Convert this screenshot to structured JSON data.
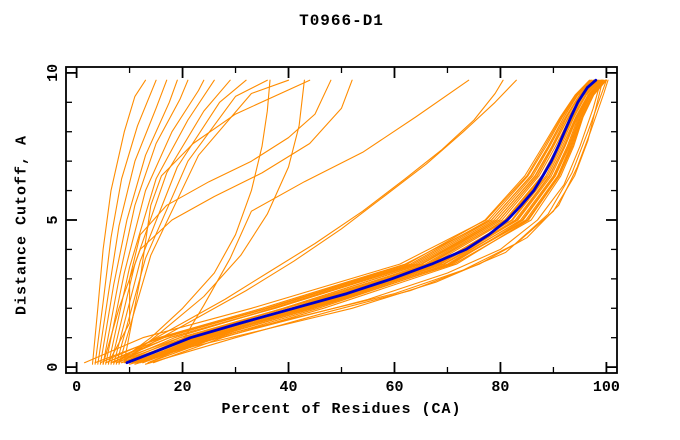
{
  "chart_data": {
    "type": "line",
    "title": "T0966-D1",
    "xlabel": "Percent of Residues (CA)",
    "ylabel": "Distance Cutoff, A",
    "xlim": [
      0,
      100
    ],
    "ylim": [
      0,
      10
    ],
    "draw_xlim": [
      -2,
      102
    ],
    "draw_ylim": [
      -0.2,
      10.2
    ],
    "grid": false,
    "legend": "none",
    "x_ticks_major": [
      0,
      20,
      40,
      60,
      80,
      100
    ],
    "x_tick_labels": [
      "0",
      "20",
      "40",
      "60",
      "80",
      "100"
    ],
    "x_ticks_minor": [
      10,
      30,
      50,
      70,
      90
    ],
    "y_ticks_major": [
      0,
      5,
      10
    ],
    "y_tick_labels": [
      "0",
      "5",
      "10"
    ],
    "y_ticks_minor": [
      1,
      2,
      3,
      4,
      6,
      7,
      8,
      9
    ],
    "colors": {
      "models": "#ff8c00",
      "reference": "#0000cd",
      "axis": "#000000",
      "background": "#ffffff"
    },
    "reference": {
      "name": "highlighted-model-curve",
      "points": [
        [
          9.5,
          0.15
        ],
        [
          14.5,
          0.5
        ],
        [
          21.5,
          1
        ],
        [
          31,
          1.5
        ],
        [
          41,
          2
        ],
        [
          51,
          2.5
        ],
        [
          59.5,
          3
        ],
        [
          67,
          3.5
        ],
        [
          73.5,
          4
        ],
        [
          77.8,
          4.5
        ],
        [
          81.3,
          5
        ],
        [
          83.9,
          5.5
        ],
        [
          86.3,
          6
        ],
        [
          88,
          6.5
        ],
        [
          89.6,
          7
        ],
        [
          90.9,
          7.5
        ],
        [
          92.1,
          8
        ],
        [
          93.3,
          8.5
        ],
        [
          94.6,
          9
        ],
        [
          96.4,
          9.5
        ],
        [
          98,
          9.75
        ]
      ]
    },
    "models_bundle": {
      "name": "main-cluster-model-curves",
      "anchor_y": [
        0.15,
        1,
        2,
        3.5,
        5,
        6.5,
        7.5,
        8.5,
        9.25,
        9.75
      ],
      "base_x": [
        9.5,
        21.5,
        41,
        67,
        81.3,
        88,
        90.9,
        93.3,
        95.5,
        98
      ],
      "offsets": [
        [
          -5,
          -6,
          -6,
          -5,
          -3,
          -2.2,
          -1.8,
          -1.3,
          -1,
          -0.8
        ],
        [
          -4,
          -4,
          -3.5,
          -2.5,
          -2,
          -1.4,
          -1.1,
          -0.8,
          -0.5,
          -0.4
        ],
        [
          -3,
          -2,
          -2,
          -1.8,
          -1.5,
          -1.1,
          -0.9,
          -0.5,
          -0.1,
          0
        ],
        [
          -2,
          -1,
          -0.6,
          -0.8,
          -1,
          -0.7,
          -0.5,
          -0.1,
          0.2,
          0.3
        ],
        [
          -1,
          0,
          0.5,
          0.2,
          0,
          0.1,
          0.2,
          0.3,
          0.5,
          0.5
        ],
        [
          0,
          1,
          1,
          0.9,
          0.8,
          0.6,
          0.5,
          0.6,
          0.7,
          0.8
        ],
        [
          1,
          2,
          1.6,
          1.2,
          1,
          0.9,
          0.8,
          0.9,
          1,
          1
        ],
        [
          2,
          3,
          2.6,
          2.2,
          2,
          1.6,
          1.3,
          1.2,
          1.2,
          1.2
        ],
        [
          3,
          4,
          3.6,
          3,
          2.5,
          2,
          1.7,
          1.4,
          1.4,
          1.5
        ],
        [
          4,
          5,
          4.6,
          3.8,
          3,
          2.4,
          2.1,
          1.8,
          1.7,
          1.8
        ],
        [
          5,
          6,
          5.6,
          4.7,
          4,
          3.1,
          2.7,
          2.2,
          2,
          2
        ],
        [
          -8,
          -9,
          -8,
          -6,
          -4,
          -3,
          -2.6,
          -1.8,
          -1.3,
          -1.1
        ],
        [
          -2,
          -3,
          -4,
          -3.5,
          -3,
          -2.3,
          -1.9,
          -1.3,
          -0.9,
          -0.7
        ],
        [
          0,
          -1,
          -2,
          -2,
          -2,
          -1.5,
          -1.2,
          -0.8,
          -0.4,
          -0.2
        ],
        [
          2,
          1,
          0,
          -0.3,
          -0.5,
          -0.2,
          -0.1,
          0.1,
          0.2,
          0.2
        ],
        [
          4,
          3,
          2,
          1.7,
          1.5,
          1.2,
          1.1,
          1.2,
          1.3,
          1.3
        ],
        [
          -4,
          -5,
          -4.8,
          -4,
          -3.5,
          -2.8,
          -2.3,
          -1.6,
          -1.1,
          -0.9
        ],
        [
          1,
          1.5,
          2,
          2.4,
          2.8,
          2.2,
          1.9,
          1.6,
          1.5,
          1.5
        ],
        [
          3,
          2,
          2.5,
          3.2,
          3.5,
          2.8,
          2.3,
          1.9,
          1.8,
          1.8
        ],
        [
          -1,
          -2,
          -1.5,
          -0.6,
          -0.3,
          0,
          0.2,
          0.4,
          0.5,
          0.6
        ],
        [
          0.5,
          0,
          0.8,
          1.5,
          1.8,
          1.3,
          1.1,
          1,
          1.1,
          1.1
        ],
        [
          -3,
          -4,
          -3.8,
          -3,
          -2.5,
          -1.9,
          -1.6,
          -1,
          -0.6,
          -0.5
        ],
        [
          2.5,
          3.5,
          3.8,
          4.2,
          4.5,
          3.4,
          2.9,
          2.3,
          2.1,
          2
        ],
        [
          -6,
          -5.5,
          -5.2,
          -4.6,
          -4.2,
          -3.4,
          -2.9,
          -2,
          -1.4,
          -1.2
        ],
        [
          1.5,
          2.5,
          3,
          3.4,
          3.8,
          3,
          2.5,
          2.1,
          2,
          1.9
        ],
        [
          -0.5,
          0.5,
          -0.5,
          -1.2,
          -1.5,
          -1,
          -0.9,
          -0.4,
          0,
          0.1
        ]
      ]
    },
    "models_outliers": {
      "name": "outlier-model-curves",
      "series": [
        [
          [
            3,
            0.1
          ],
          [
            4,
            2
          ],
          [
            5,
            4
          ],
          [
            6.5,
            6
          ],
          [
            9,
            8
          ],
          [
            11,
            9.2
          ],
          [
            13,
            9.75
          ]
        ],
        [
          [
            3.5,
            0.1
          ],
          [
            5,
            2.2
          ],
          [
            6.5,
            4.4
          ],
          [
            8.5,
            6.4
          ],
          [
            11.5,
            8.2
          ],
          [
            15,
            9.75
          ]
        ],
        [
          [
            4,
            0.1
          ],
          [
            6,
            2.5
          ],
          [
            8,
            4.8
          ],
          [
            11,
            7
          ],
          [
            15,
            8.8
          ],
          [
            17,
            9.75
          ]
        ],
        [
          [
            4.5,
            0.1
          ],
          [
            7,
            2.8
          ],
          [
            9.5,
            5
          ],
          [
            13,
            7.2
          ],
          [
            17.5,
            9
          ],
          [
            19,
            9.75
          ]
        ],
        [
          [
            5,
            0.1
          ],
          [
            8,
            3
          ],
          [
            11,
            5.5
          ],
          [
            15,
            7.6
          ],
          [
            19.5,
            9.1
          ],
          [
            21,
            9.75
          ]
        ],
        [
          [
            5.5,
            0.1
          ],
          [
            9,
            3.2
          ],
          [
            13,
            6
          ],
          [
            18,
            8
          ],
          [
            23,
            9.4
          ],
          [
            24,
            9.75
          ]
        ],
        [
          [
            6,
            0.1
          ],
          [
            10,
            3.4
          ],
          [
            15,
            6.4
          ],
          [
            21,
            8.4
          ],
          [
            26,
            9.75
          ]
        ],
        [
          [
            6.5,
            0.1
          ],
          [
            11,
            3.5
          ],
          [
            17,
            6.6
          ],
          [
            24,
            8.7
          ],
          [
            29,
            9.75
          ]
        ],
        [
          [
            7,
            0.1
          ],
          [
            12,
            3.6
          ],
          [
            19,
            6.8
          ],
          [
            27,
            9
          ],
          [
            32,
            9.75
          ]
        ],
        [
          [
            7.5,
            0.1
          ],
          [
            13,
            3.7
          ],
          [
            21,
            7
          ],
          [
            30,
            9.2
          ],
          [
            36,
            9.75
          ]
        ],
        [
          [
            8,
            0.1
          ],
          [
            14,
            3.8
          ],
          [
            23,
            7.2
          ],
          [
            33,
            9.3
          ],
          [
            40,
            9.75
          ]
        ],
        [
          [
            9,
            0.2
          ],
          [
            12,
            3
          ],
          [
            14,
            5.5
          ],
          [
            16,
            6.5
          ],
          [
            22,
            7.6
          ],
          [
            30,
            8.6
          ],
          [
            44,
            9.75
          ]
        ],
        [
          [
            8,
            0.2
          ],
          [
            14,
            1
          ],
          [
            20,
            2
          ],
          [
            26,
            3.2
          ],
          [
            30,
            4.5
          ],
          [
            33,
            6
          ],
          [
            35,
            7.5
          ],
          [
            36,
            8.7
          ],
          [
            36.5,
            9.75
          ]
        ],
        [
          [
            9,
            0.2
          ],
          [
            16,
            1.2
          ],
          [
            24,
            2.4
          ],
          [
            31,
            3.8
          ],
          [
            36,
            5.2
          ],
          [
            40,
            6.8
          ],
          [
            42,
            8.2
          ],
          [
            43,
            9.75
          ]
        ],
        [
          [
            6,
            0.15
          ],
          [
            10,
            1.5
          ],
          [
            10,
            3
          ],
          [
            12,
            4.5
          ],
          [
            17,
            5.5
          ],
          [
            25,
            6.3
          ],
          [
            33,
            7
          ],
          [
            40,
            7.8
          ],
          [
            45,
            8.6
          ],
          [
            48,
            9.75
          ]
        ],
        [
          [
            5,
            0.1
          ],
          [
            8,
            2
          ],
          [
            12,
            4
          ],
          [
            18,
            5
          ],
          [
            26,
            5.8
          ],
          [
            35,
            6.6
          ],
          [
            44,
            7.6
          ],
          [
            50,
            8.8
          ],
          [
            52,
            9.75
          ]
        ],
        [
          [
            19,
            0.6
          ],
          [
            24,
            2.1
          ],
          [
            29,
            3.7
          ],
          [
            33,
            5.3
          ],
          [
            43,
            6.3
          ],
          [
            54,
            7.3
          ],
          [
            64,
            8.5
          ],
          [
            74,
            9.75
          ]
        ],
        [
          [
            7,
            0.15
          ],
          [
            13,
            0.8
          ],
          [
            20,
            1.5
          ],
          [
            28,
            2.3
          ],
          [
            36,
            3.2
          ],
          [
            45,
            4.2
          ],
          [
            54,
            5.3
          ],
          [
            62,
            6.4
          ],
          [
            69,
            7.4
          ],
          [
            75,
            8.4
          ],
          [
            79,
            9.3
          ],
          [
            80.5,
            9.75
          ]
        ],
        [
          [
            8,
            0.15
          ],
          [
            15,
            0.9
          ],
          [
            23,
            1.7
          ],
          [
            32,
            2.6
          ],
          [
            41,
            3.6
          ],
          [
            50,
            4.7
          ],
          [
            58,
            5.8
          ],
          [
            66,
            6.9
          ],
          [
            73,
            8
          ],
          [
            79,
            9
          ],
          [
            83,
            9.75
          ]
        ],
        [
          [
            11,
            0.1
          ],
          [
            25,
            0.9
          ],
          [
            40,
            1.6
          ],
          [
            55,
            2.3
          ],
          [
            70,
            3.2
          ],
          [
            80,
            4
          ],
          [
            87,
            5
          ],
          [
            92,
            6.2
          ],
          [
            95,
            7.5
          ],
          [
            97.5,
            8.8
          ],
          [
            99,
            9.75
          ]
        ],
        [
          [
            13,
            0.1
          ],
          [
            30,
            1
          ],
          [
            48,
            1.9
          ],
          [
            63,
            2.6
          ],
          [
            76,
            3.5
          ],
          [
            85,
            4.4
          ],
          [
            91,
            5.5
          ],
          [
            94.5,
            6.8
          ],
          [
            97,
            8
          ],
          [
            99.5,
            9.3
          ],
          [
            100.3,
            9.75
          ]
        ],
        [
          [
            10,
            0.1
          ],
          [
            22,
            0.7
          ],
          [
            36,
            1.3
          ],
          [
            52,
            2
          ],
          [
            68,
            2.9
          ],
          [
            81,
            3.9
          ],
          [
            89,
            5.2
          ],
          [
            93.5,
            6.6
          ],
          [
            96.5,
            8
          ],
          [
            98.5,
            9
          ],
          [
            100,
            9.75
          ]
        ],
        [
          [
            12,
            0.2
          ],
          [
            28,
            1.1
          ],
          [
            44,
            1.8
          ],
          [
            60,
            2.5
          ],
          [
            73,
            3.3
          ],
          [
            83,
            4.2
          ],
          [
            90,
            5.3
          ],
          [
            94,
            6.5
          ],
          [
            96.5,
            7.7
          ],
          [
            98,
            8.8
          ],
          [
            99.3,
            9.75
          ]
        ]
      ]
    }
  }
}
